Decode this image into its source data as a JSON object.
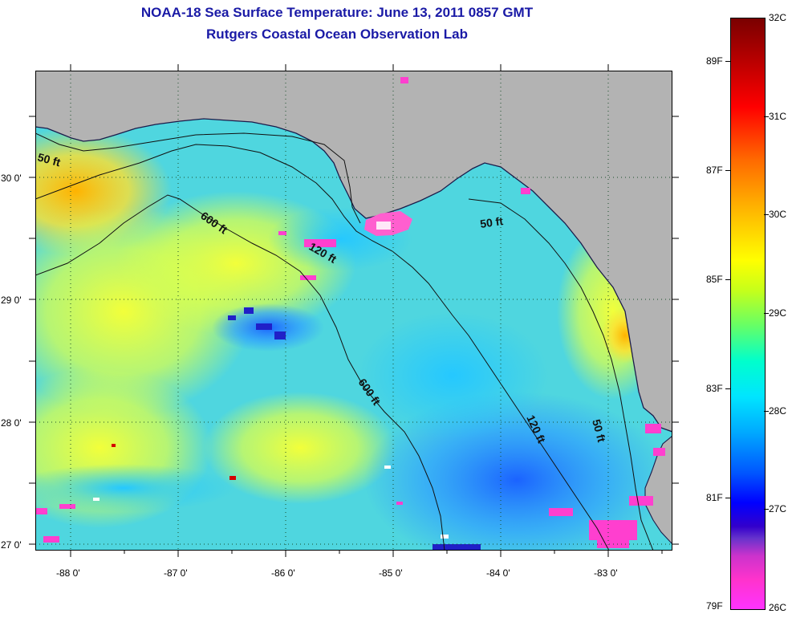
{
  "title": {
    "line1": "NOAA-18 Sea Surface Temperature:  June 13, 2011 0857 GMT",
    "line2": "Rutgers Coastal Ocean Observation Lab"
  },
  "map": {
    "lat_labels": [
      "30 0'",
      "29 0'",
      "28 0'",
      "27 0'"
    ],
    "lon_labels": [
      "-88 0'",
      "-87 0'",
      "-86 0'",
      "-85 0'",
      "-84 0'",
      "-83 0'"
    ],
    "contour_labels": [
      "50 ft",
      "600 ft",
      "120 ft",
      "600 ft",
      "50 ft",
      "120 ft",
      "50 ft"
    ],
    "land_color": "#b3b3b3",
    "water_base_color": "#54d4e8"
  },
  "colorbar": {
    "celsius": [
      "32C",
      "31C",
      "30C",
      "29C",
      "28C",
      "27C",
      "26C"
    ],
    "fahrenheit": [
      "89F",
      "87F",
      "85F",
      "83F",
      "81F",
      "79F"
    ]
  }
}
